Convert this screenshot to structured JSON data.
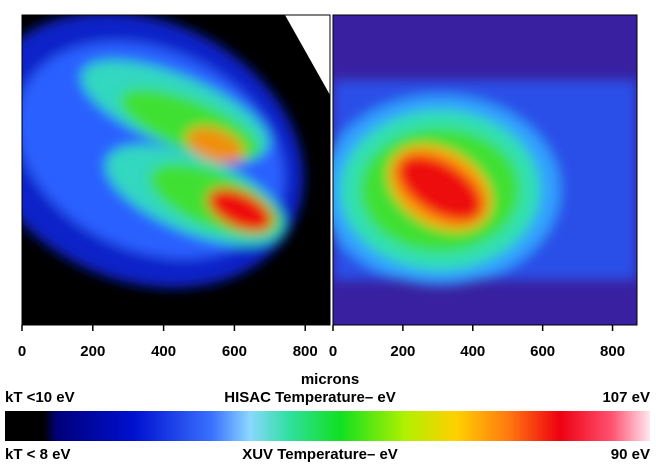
{
  "chart_data": [
    {
      "type": "image",
      "xlim": [
        0,
        870
      ],
      "xticks": [
        0,
        200,
        400,
        600,
        800
      ]
    },
    {
      "type": "image",
      "xlim": [
        0,
        870
      ],
      "xticks": [
        0,
        200,
        400,
        600,
        800
      ]
    }
  ],
  "x_label": "microns",
  "colorbar": {
    "top_left": "kT <10 eV",
    "top_title": "HISAC Temperature– eV",
    "top_right": "107 eV",
    "bottom_left": "kT < 8 eV",
    "bottom_title": "XUV Temperature– eV",
    "bottom_right": "90 eV"
  }
}
